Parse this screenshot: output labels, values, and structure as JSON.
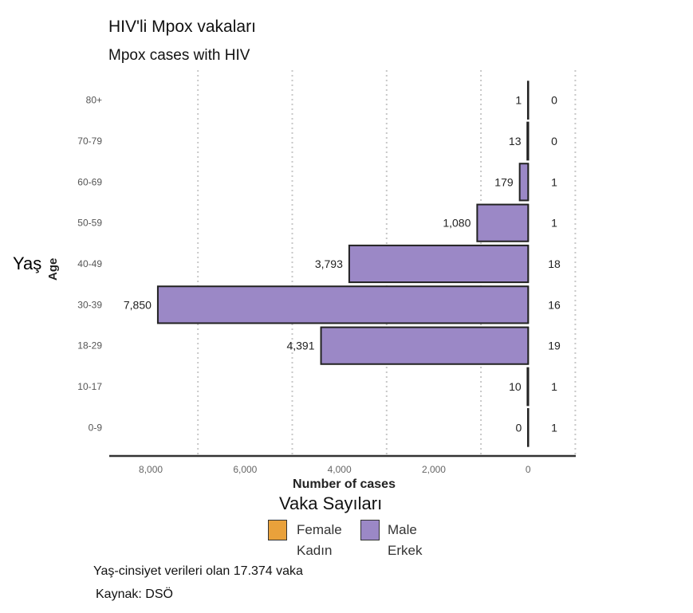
{
  "chart_data": {
    "type": "bar",
    "orientation": "horizontal-population-pyramid",
    "title": "HIV'li Mpox vakaları",
    "subtitle": "Mpox cases with HIV",
    "ylabel": "Age",
    "ylabel_tr": "Yaş",
    "xlabel": "Number of cases",
    "xlabel_tr": "Vaka Sayıları",
    "categories": [
      "80+",
      "70-79",
      "60-69",
      "50-59",
      "40-49",
      "30-39",
      "18-29",
      "10-17",
      "0-9"
    ],
    "series": [
      {
        "name": "Male",
        "name_tr": "Erkek",
        "color": "#9b88c6",
        "values": [
          1,
          13,
          179,
          1080,
          3793,
          7850,
          4391,
          10,
          0
        ],
        "labels": [
          "1",
          "13",
          "179",
          "1,080",
          "3,793",
          "7,850",
          "4,391",
          "10",
          "0"
        ]
      },
      {
        "name": "Female",
        "name_tr": "Kadın",
        "color": "#e9a13b",
        "values": [
          0,
          0,
          1,
          1,
          18,
          16,
          19,
          1,
          1
        ],
        "labels": [
          "0",
          "0",
          "1",
          "1",
          "18",
          "16",
          "19",
          "1",
          "1"
        ]
      }
    ],
    "xticks": [
      8000,
      6000,
      4000,
      2000,
      0
    ],
    "xtick_labels": [
      "8,000",
      "6,000",
      "4,000",
      "2,000",
      "0"
    ],
    "xlim": [
      8880,
      -1010
    ],
    "grid": "vertical dotted",
    "legend_position": "bottom"
  },
  "footer": {
    "note": "Yaş-cinsiyet verileri olan 17.374 vaka",
    "source": "Kaynak: DSÖ"
  }
}
